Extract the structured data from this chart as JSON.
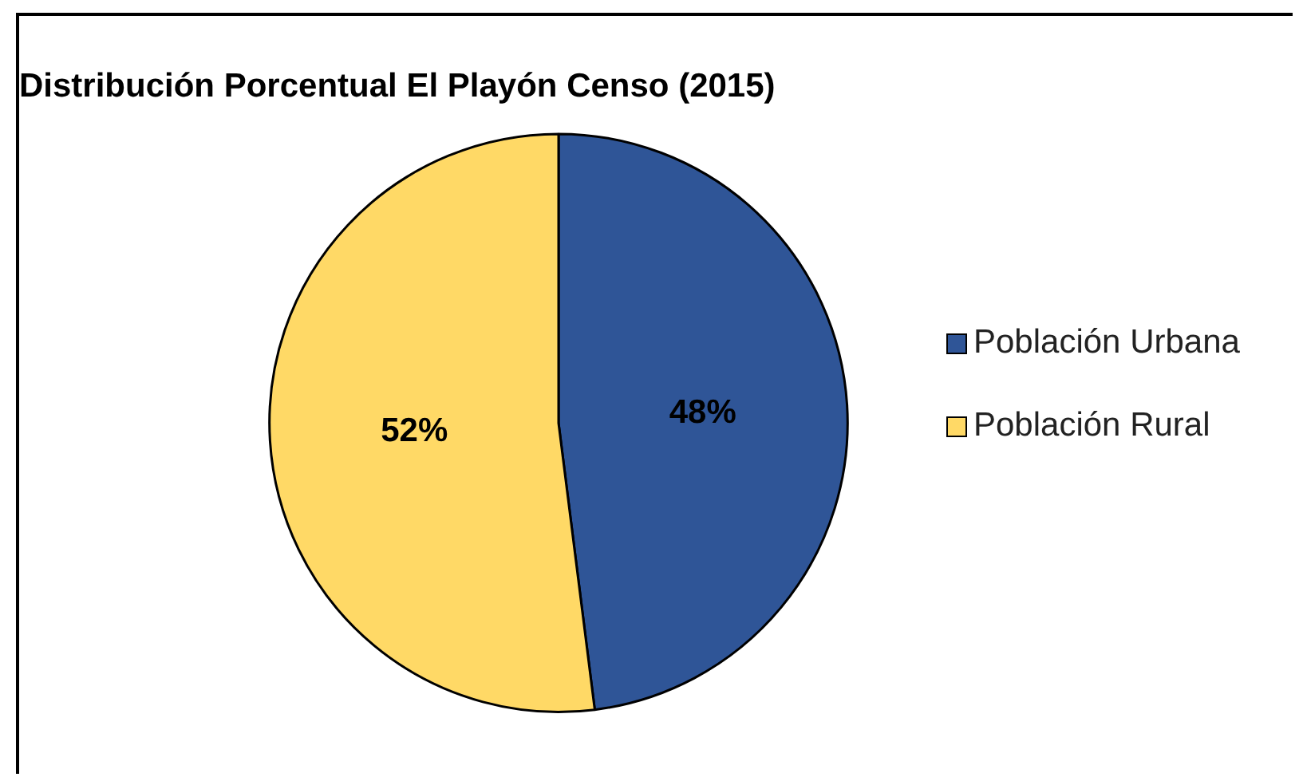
{
  "chart_data": {
    "type": "pie",
    "title": "Distribución Porcentual El Playón Censo (2015)",
    "categories": [
      "Población Urbana",
      "Población Rural"
    ],
    "values": [
      48,
      52
    ],
    "colors": [
      "#2f5597",
      "#ffd966"
    ],
    "value_labels": [
      "48%",
      "52%"
    ],
    "legend": "right"
  }
}
